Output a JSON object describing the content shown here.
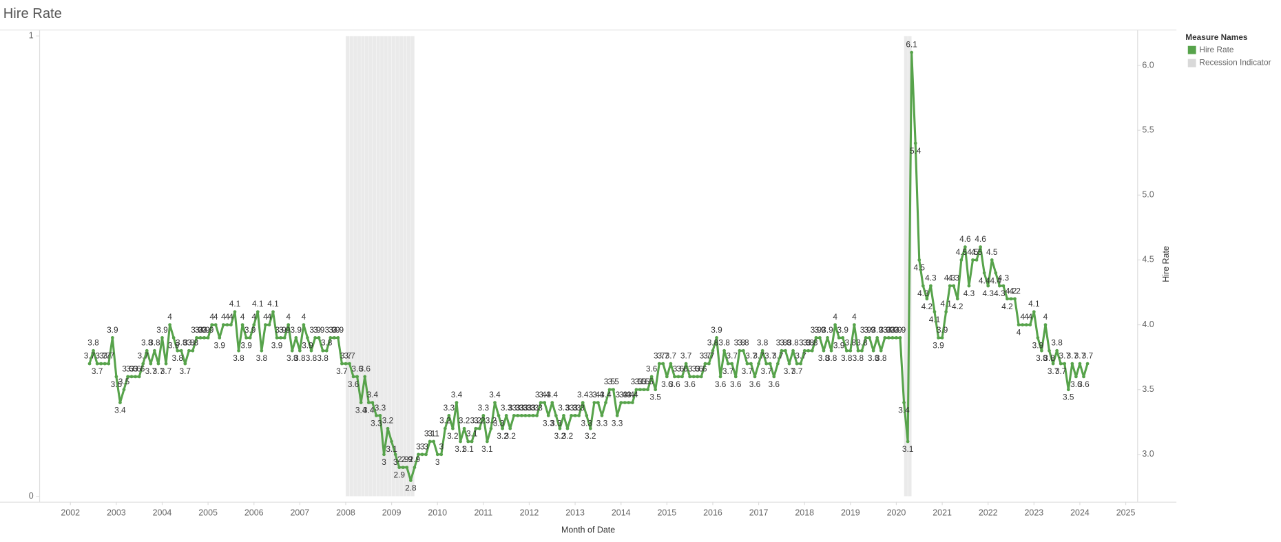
{
  "chart_data": {
    "type": "line",
    "title": "Hire Rate",
    "x_label": "Month of Date",
    "y2_label": "Hire Rate",
    "legend_title": "Measure Names",
    "legend": "right",
    "x": [
      "2002-06",
      "2002-07",
      "2002-08",
      "2002-09",
      "2002-10",
      "2002-11",
      "2002-12",
      "2003-01",
      "2003-02",
      "2003-03",
      "2003-04",
      "2003-05",
      "2003-06",
      "2003-07",
      "2003-08",
      "2003-09",
      "2003-10",
      "2003-11",
      "2003-12",
      "2004-01",
      "2004-02",
      "2004-03",
      "2004-04",
      "2004-05",
      "2004-06",
      "2004-07",
      "2004-08",
      "2004-09",
      "2004-10",
      "2004-11",
      "2004-12",
      "2005-01",
      "2005-02",
      "2005-03",
      "2005-04",
      "2005-05",
      "2005-06",
      "2005-07",
      "2005-08",
      "2005-09",
      "2005-10",
      "2005-11",
      "2005-12",
      "2006-01",
      "2006-02",
      "2006-03",
      "2006-04",
      "2006-05",
      "2006-06",
      "2006-07",
      "2006-08",
      "2006-09",
      "2006-10",
      "2006-11",
      "2006-12",
      "2007-01",
      "2007-02",
      "2007-03",
      "2007-04",
      "2007-05",
      "2007-06",
      "2007-07",
      "2007-08",
      "2007-09",
      "2007-10",
      "2007-11",
      "2007-12",
      "2008-01",
      "2008-02",
      "2008-03",
      "2008-04",
      "2008-05",
      "2008-06",
      "2008-07",
      "2008-08",
      "2008-09",
      "2008-10",
      "2008-11",
      "2008-12",
      "2009-01",
      "2009-02",
      "2009-03",
      "2009-04",
      "2009-05",
      "2009-06",
      "2009-07",
      "2009-08",
      "2009-09",
      "2009-10",
      "2009-11",
      "2009-12",
      "2010-01",
      "2010-02",
      "2010-03",
      "2010-04",
      "2010-05",
      "2010-06",
      "2010-07",
      "2010-08",
      "2010-09",
      "2010-10",
      "2010-11",
      "2010-12",
      "2011-01",
      "2011-02",
      "2011-03",
      "2011-04",
      "2011-05",
      "2011-06",
      "2011-07",
      "2011-08",
      "2011-09",
      "2011-10",
      "2011-11",
      "2011-12",
      "2012-01",
      "2012-02",
      "2012-03",
      "2012-04",
      "2012-05",
      "2012-06",
      "2012-07",
      "2012-08",
      "2012-09",
      "2012-10",
      "2012-11",
      "2012-12",
      "2013-01",
      "2013-02",
      "2013-03",
      "2013-04",
      "2013-05",
      "2013-06",
      "2013-07",
      "2013-08",
      "2013-09",
      "2013-10",
      "2013-11",
      "2013-12",
      "2014-01",
      "2014-02",
      "2014-03",
      "2014-04",
      "2014-05",
      "2014-06",
      "2014-07",
      "2014-08",
      "2014-09",
      "2014-10",
      "2014-11",
      "2014-12",
      "2015-01",
      "2015-02",
      "2015-03",
      "2015-04",
      "2015-05",
      "2015-06",
      "2015-07",
      "2015-08",
      "2015-09",
      "2015-10",
      "2015-11",
      "2015-12",
      "2016-01",
      "2016-02",
      "2016-03",
      "2016-04",
      "2016-05",
      "2016-06",
      "2016-07",
      "2016-08",
      "2016-09",
      "2016-10",
      "2016-11",
      "2016-12",
      "2017-01",
      "2017-02",
      "2017-03",
      "2017-04",
      "2017-05",
      "2017-06",
      "2017-07",
      "2017-08",
      "2017-09",
      "2017-10",
      "2017-11",
      "2017-12",
      "2018-01",
      "2018-02",
      "2018-03",
      "2018-04",
      "2018-05",
      "2018-06",
      "2018-07",
      "2018-08",
      "2018-09",
      "2018-10",
      "2018-11",
      "2018-12",
      "2019-01",
      "2019-02",
      "2019-03",
      "2019-04",
      "2019-05",
      "2019-06",
      "2019-07",
      "2019-08",
      "2019-09",
      "2019-10",
      "2019-11",
      "2019-12",
      "2020-01",
      "2020-02",
      "2020-03",
      "2020-04",
      "2020-05",
      "2020-06",
      "2020-07",
      "2020-08",
      "2020-09",
      "2020-10",
      "2020-11",
      "2020-12",
      "2021-01",
      "2021-02",
      "2021-03",
      "2021-04",
      "2021-05",
      "2021-06",
      "2021-07",
      "2021-08",
      "2021-09",
      "2021-10",
      "2021-11",
      "2021-12",
      "2022-01",
      "2022-02",
      "2022-03",
      "2022-04",
      "2022-05",
      "2022-06",
      "2022-07",
      "2022-08",
      "2022-09",
      "2022-10",
      "2022-11",
      "2022-12",
      "2023-01",
      "2023-02",
      "2023-03",
      "2023-04",
      "2023-05",
      "2023-06",
      "2023-07",
      "2023-08",
      "2023-09",
      "2023-10",
      "2023-11",
      "2023-12",
      "2024-01",
      "2024-02",
      "2024-03"
    ],
    "series": [
      {
        "name": "Hire Rate",
        "color": "#57a34b",
        "axis": "y2",
        "values": [
          3.7,
          3.8,
          3.7,
          3.7,
          3.7,
          3.7,
          3.9,
          3.6,
          3.4,
          3.5,
          3.6,
          3.6,
          3.6,
          3.6,
          3.7,
          3.8,
          3.7,
          3.8,
          3.7,
          3.9,
          3.7,
          4,
          3.9,
          3.8,
          3.8,
          3.7,
          3.8,
          3.8,
          3.9,
          3.9,
          3.9,
          3.9,
          4,
          4,
          3.9,
          4,
          4,
          4,
          4.1,
          3.8,
          4,
          3.9,
          3.9,
          4,
          4.1,
          3.8,
          4,
          4,
          4.1,
          3.9,
          3.9,
          3.9,
          4,
          3.8,
          3.9,
          3.8,
          4,
          3.9,
          3.8,
          3.9,
          3.9,
          3.8,
          3.8,
          3.9,
          3.9,
          3.9,
          3.7,
          3.7,
          3.7,
          3.6,
          3.6,
          3.4,
          3.6,
          3.4,
          3.4,
          3.3,
          3.3,
          3,
          3.2,
          3.1,
          3,
          2.9,
          2.9,
          2.9,
          2.8,
          2.9,
          3,
          3,
          3,
          3.1,
          3.1,
          3,
          3,
          3.2,
          3.3,
          3.2,
          3.4,
          3.1,
          3.2,
          3.1,
          3.1,
          3.2,
          3.2,
          3.3,
          3.1,
          3.2,
          3.4,
          3.3,
          3.2,
          3.3,
          3.2,
          3.3,
          3.3,
          3.3,
          3.3,
          3.3,
          3.3,
          3.3,
          3.4,
          3.4,
          3.3,
          3.4,
          3.3,
          3.2,
          3.3,
          3.2,
          3.3,
          3.3,
          3.3,
          3.4,
          3.3,
          3.2,
          3.4,
          3.4,
          3.3,
          3.4,
          3.5,
          3.5,
          3.3,
          3.4,
          3.4,
          3.4,
          3.4,
          3.5,
          3.5,
          3.5,
          3.5,
          3.6,
          3.5,
          3.7,
          3.7,
          3.6,
          3.7,
          3.6,
          3.6,
          3.6,
          3.7,
          3.6,
          3.6,
          3.6,
          3.6,
          3.7,
          3.7,
          3.8,
          3.9,
          3.6,
          3.8,
          3.7,
          3.7,
          3.6,
          3.8,
          3.8,
          3.7,
          3.7,
          3.6,
          3.7,
          3.8,
          3.7,
          3.7,
          3.6,
          3.7,
          3.8,
          3.8,
          3.7,
          3.8,
          3.7,
          3.7,
          3.8,
          3.8,
          3.8,
          3.9,
          3.9,
          3.8,
          3.9,
          3.8,
          4,
          3.9,
          3.9,
          3.8,
          3.8,
          4,
          3.8,
          3.8,
          3.9,
          3.9,
          3.8,
          3.9,
          3.8,
          3.9,
          3.9,
          3.9,
          3.9,
          3.9,
          3.4,
          3.1,
          6.1,
          5.4,
          4.5,
          4.3,
          4.2,
          4.3,
          4.1,
          3.9,
          3.9,
          4.1,
          4.3,
          4.3,
          4.2,
          4.5,
          4.6,
          4.3,
          4.5,
          4.5,
          4.6,
          4.4,
          4.3,
          4.5,
          4.4,
          4.3,
          4.3,
          4.2,
          4.2,
          4.2,
          4,
          4,
          4,
          4,
          4.1,
          3.9,
          3.8,
          4,
          3.8,
          3.7,
          3.8,
          3.7,
          3.7,
          3.5,
          3.7,
          3.6,
          3.7,
          3.6,
          3.7
        ]
      },
      {
        "name": "Recession Indicator",
        "color": "#d9d9d9",
        "type": "bar",
        "values": [
          0,
          0,
          0,
          0,
          0,
          0,
          0,
          0,
          0,
          0,
          0,
          0,
          0,
          0,
          0,
          0,
          0,
          0,
          0,
          0,
          0,
          0,
          0,
          0,
          0,
          0,
          0,
          0,
          0,
          0,
          0,
          0,
          0,
          0,
          0,
          0,
          0,
          0,
          0,
          0,
          0,
          0,
          0,
          0,
          0,
          0,
          0,
          0,
          0,
          0,
          0,
          0,
          0,
          0,
          0,
          0,
          0,
          0,
          0,
          0,
          0,
          0,
          0,
          0,
          0,
          0,
          0,
          1,
          1,
          1,
          1,
          1,
          1,
          1,
          1,
          1,
          1,
          1,
          1,
          1,
          1,
          1,
          1,
          1,
          1,
          0,
          0,
          0,
          0,
          0,
          0,
          0,
          0,
          0,
          0,
          0,
          0,
          0,
          0,
          0,
          0,
          0,
          0,
          0,
          0,
          0,
          0,
          0,
          0,
          0,
          0,
          0,
          0,
          0,
          0,
          0,
          0,
          0,
          0,
          0,
          0,
          0,
          0,
          0,
          0,
          0,
          0,
          0,
          0,
          0,
          0,
          0,
          0,
          0,
          0,
          0,
          0,
          0,
          0,
          0,
          0,
          0,
          0,
          0,
          0,
          0,
          0,
          0,
          0,
          0,
          0,
          0,
          0,
          0,
          0,
          0,
          0,
          0,
          0,
          0,
          0,
          0,
          0,
          0,
          0,
          0,
          0,
          0,
          0,
          0,
          0,
          0,
          0,
          0,
          0,
          0,
          0,
          0,
          0,
          0,
          0,
          0,
          0,
          0,
          0,
          0,
          0,
          0,
          0,
          0,
          0,
          0,
          0,
          0,
          0,
          0,
          0,
          0,
          0,
          0,
          0,
          0,
          0,
          0,
          0,
          0,
          0,
          0,
          0,
          0,
          0,
          0,
          0,
          1,
          1,
          0,
          0,
          0,
          0,
          0,
          0,
          0,
          0,
          0,
          0,
          0,
          0,
          0,
          0,
          0,
          0,
          0,
          0,
          0,
          0,
          0,
          0,
          0,
          0,
          0,
          0,
          0,
          0,
          0,
          0,
          0,
          0,
          0,
          0,
          0,
          0,
          0,
          0,
          0,
          0,
          0,
          0,
          0,
          0,
          0,
          0,
          0
        ]
      }
    ],
    "xlim": [
      2001.32,
      2025.25
    ],
    "xticks": [
      2002,
      2003,
      2004,
      2005,
      2006,
      2007,
      2008,
      2009,
      2010,
      2011,
      2012,
      2013,
      2014,
      2015,
      2016,
      2017,
      2018,
      2019,
      2020,
      2021,
      2022,
      2023,
      2024,
      2025
    ],
    "ylim": [
      -0.012,
      1.012
    ],
    "yticks": [
      0,
      1
    ],
    "y2lim": [
      2.635,
      6.27
    ],
    "y2ticks": [
      {
        "value": 3,
        "label": "3.0"
      },
      {
        "value": 3.5,
        "label": "3.5"
      },
      {
        "value": 4,
        "label": "4.0"
      },
      {
        "value": 4.5,
        "label": "4.5"
      },
      {
        "value": 5,
        "label": "5.0"
      },
      {
        "value": 5.5,
        "label": "5.5"
      },
      {
        "value": 6,
        "label": "6.0"
      }
    ]
  }
}
